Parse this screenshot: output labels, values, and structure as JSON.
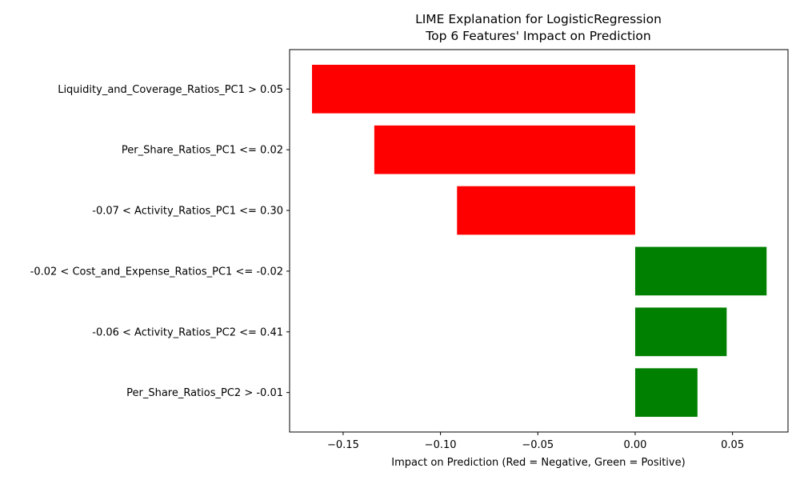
{
  "chart_data": {
    "type": "bar",
    "orientation": "horizontal",
    "title_line1": "LIME Explanation for LogisticRegression",
    "title_line2": "Top 6 Features' Impact on Prediction",
    "xlabel": "Impact on Prediction (Red = Negative, Green = Positive)",
    "ylabel": "",
    "categories": [
      "Liquidity_and_Coverage_Ratios_PC1 > 0.05",
      "Per_Share_Ratios_PC1 <= 0.02",
      "-0.07 < Activity_Ratios_PC1 <= 0.30",
      "-0.02 < Cost_and_Expense_Ratios_PC1 <= -0.02",
      "-0.06 < Activity_Ratios_PC2 <= 0.41",
      "Per_Share_Ratios_PC2 > -0.01"
    ],
    "values": [
      -0.166,
      -0.134,
      -0.0915,
      0.0675,
      0.047,
      0.032
    ],
    "xlim": [
      -0.1775,
      0.0785
    ],
    "xticks": [
      -0.15,
      -0.1,
      -0.05,
      0.0,
      0.05
    ],
    "xtick_labels": [
      "−0.15",
      "−0.10",
      "−0.05",
      "0.00",
      "0.05"
    ],
    "colors": {
      "negative": "#ff0000",
      "positive": "#008000"
    },
    "grid": false,
    "legend": "none"
  }
}
